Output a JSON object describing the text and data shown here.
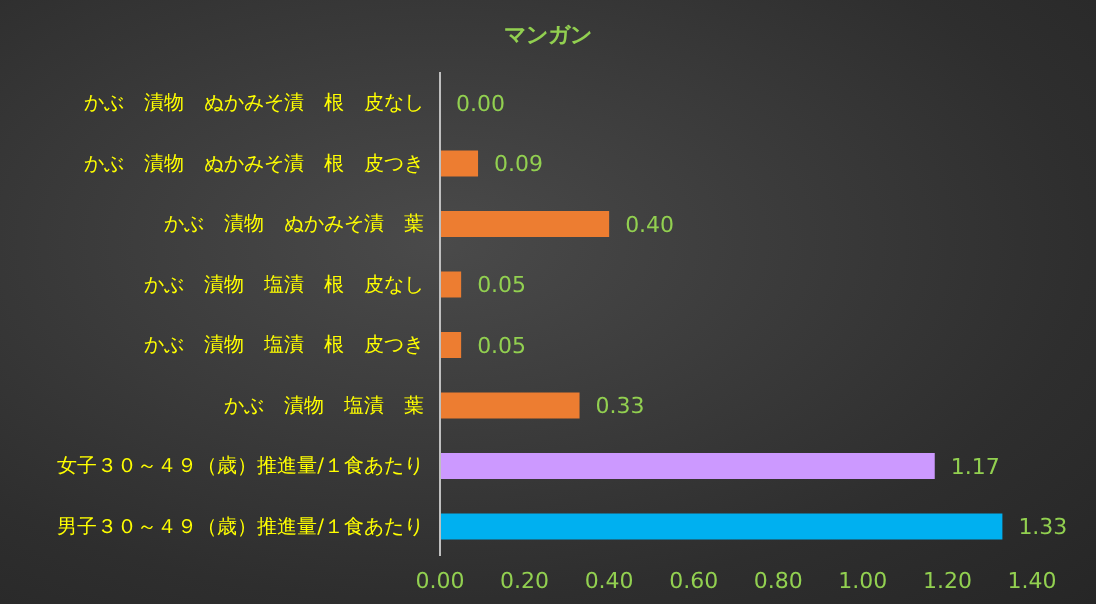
{
  "chart_data": {
    "type": "bar",
    "orientation": "horizontal",
    "title": "マンガン",
    "categories": [
      "かぶ　漬物　ぬかみそ漬　根　皮なし",
      "かぶ　漬物　ぬかみそ漬　根　皮つき",
      "かぶ　漬物　ぬかみそ漬　葉",
      "かぶ　漬物　塩漬　根　皮なし",
      "かぶ　漬物　塩漬　根　皮つき",
      "かぶ　漬物　塩漬　葉",
      "女子３０～４９（歳）推進量/１食あたり",
      "男子３０～４９（歳）推進量/１食あたり"
    ],
    "values": [
      0.0,
      0.09,
      0.4,
      0.05,
      0.05,
      0.33,
      1.17,
      1.33
    ],
    "value_labels": [
      "0.00",
      "0.09",
      "0.40",
      "0.05",
      "0.05",
      "0.33",
      "1.17",
      "1.33"
    ],
    "colors": [
      "#ed7d31",
      "#ed7d31",
      "#ed7d31",
      "#ed7d31",
      "#ed7d31",
      "#ed7d31",
      "#cc99ff",
      "#00b0f0"
    ],
    "xlim": [
      0,
      1.4
    ],
    "xticks": [
      {
        "value": 0,
        "label": "0.00"
      },
      {
        "value": 0.2,
        "label": "0.20"
      },
      {
        "value": 0.4,
        "label": "0.40"
      },
      {
        "value": 0.6,
        "label": "0.60"
      },
      {
        "value": 0.8,
        "label": "0.80"
      },
      {
        "value": 1.0,
        "label": "1.00"
      },
      {
        "value": 1.2,
        "label": "1.20"
      },
      {
        "value": 1.4,
        "label": "1.40"
      }
    ],
    "grid": false,
    "legend": false
  }
}
